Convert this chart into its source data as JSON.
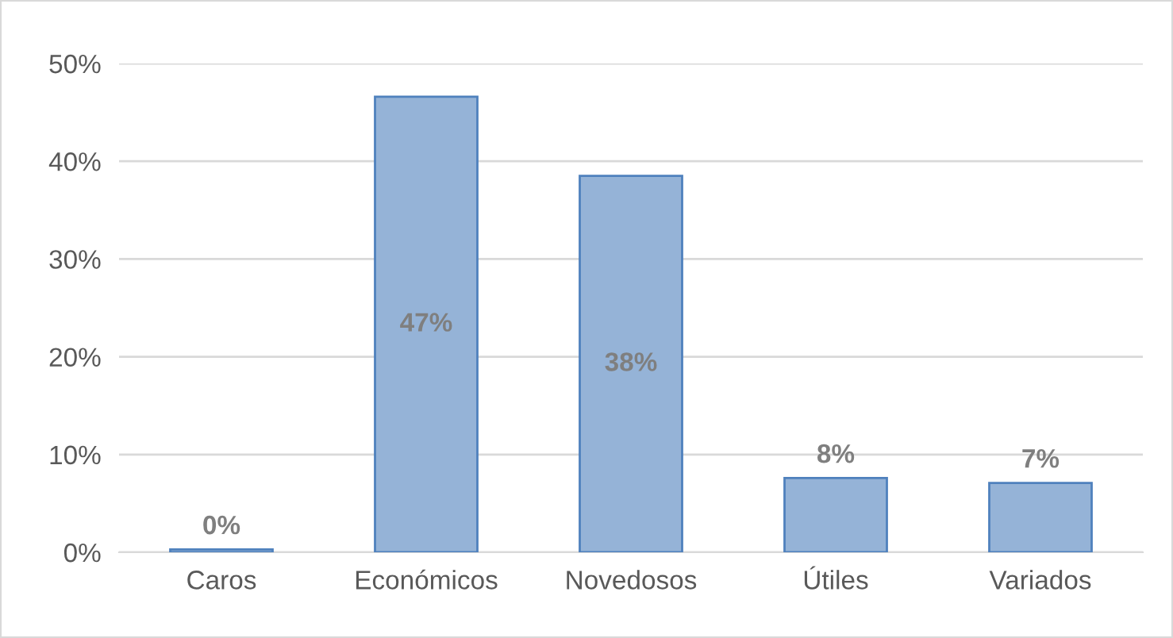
{
  "chart_data": {
    "type": "bar",
    "categories": [
      "Caros",
      "Económicos",
      "Novedosos",
      "Útiles",
      "Variados"
    ],
    "values": [
      0.3,
      46.6,
      38.5,
      7.6,
      7.1
    ],
    "value_labels": [
      "0%",
      "47%",
      "38%",
      "8%",
      "7%"
    ],
    "color": "#95b3d7",
    "ylim": [
      0,
      50
    ],
    "yticks": [
      {
        "value": 0,
        "label": "0%"
      },
      {
        "value": 10,
        "label": "10%"
      },
      {
        "value": 20,
        "label": "20%"
      },
      {
        "value": 30,
        "label": "30%"
      },
      {
        "value": 40,
        "label": "40%"
      },
      {
        "value": 50,
        "label": "50%"
      }
    ],
    "grid": "y"
  }
}
